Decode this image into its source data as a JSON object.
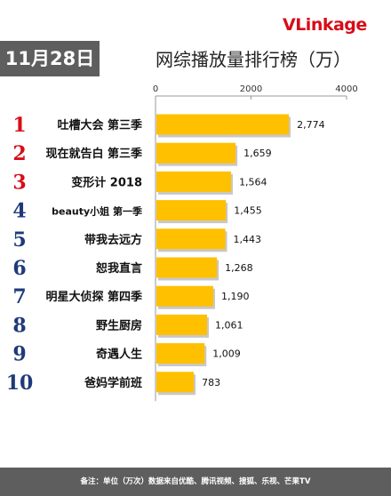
{
  "header": {
    "date": "11月28日",
    "logo_text": "VLinkage",
    "logo_color": "#d80c18",
    "title": "网综播放量排行榜（万）"
  },
  "chart_data": {
    "type": "bar",
    "orientation": "horizontal",
    "title": "网综播放量排行榜（万）",
    "unit": "万",
    "xlim": [
      0,
      4000
    ],
    "xticks": [
      0,
      2000,
      4000
    ],
    "bar_color": "#ffc000",
    "rank_color_top3": "#d80c18",
    "rank_color_other": "#1f3a7a",
    "ranks": [
      "1",
      "2",
      "3",
      "4",
      "5",
      "6",
      "7",
      "8",
      "9",
      "10"
    ],
    "categories": [
      "吐槽大会 第三季",
      "现在就告白 第三季",
      "变形计 2018",
      "beauty小姐 第一季",
      "带我去远方",
      "恕我直言",
      "明星大侦探 第四季",
      "野生厨房",
      "奇遇人生",
      "爸妈学前班"
    ],
    "values": [
      2774,
      1659,
      1564,
      1455,
      1443,
      1268,
      1190,
      1061,
      1009,
      783
    ],
    "value_labels": [
      "2,774",
      "1,659",
      "1,564",
      "1,455",
      "1,443",
      "1,268",
      "1,190",
      "1,061",
      "1,009",
      "783"
    ]
  },
  "footer": {
    "note": "备注：单位（万次）数据来自优酷、腾讯视频、搜狐、乐视、芒果TV"
  }
}
